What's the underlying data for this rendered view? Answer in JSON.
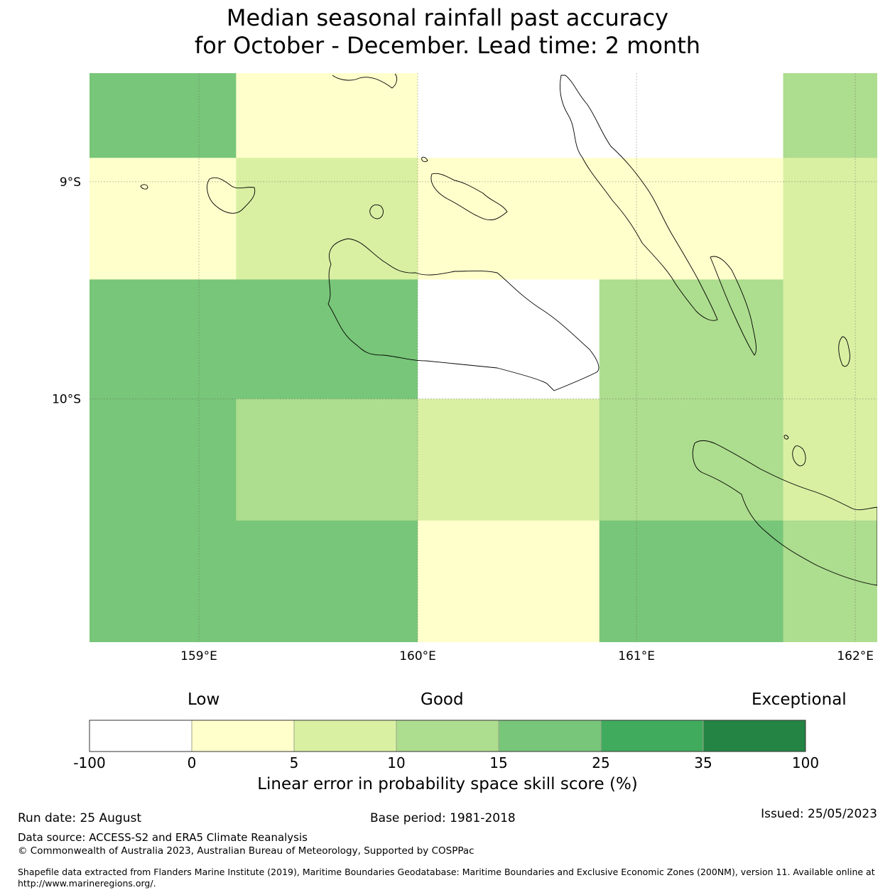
{
  "title": {
    "line1": "Median seasonal rainfall past accuracy",
    "line2": "for October - December. Lead time: 2 month"
  },
  "map": {
    "lat_labels": [
      "9°S",
      "10°S"
    ],
    "lon_labels": [
      "159°E",
      "160°E",
      "161°E",
      "162°E"
    ],
    "lat_range": [
      -11.12,
      -8.5
    ],
    "lon_range": [
      158.5,
      162.1
    ],
    "grid": true,
    "land_outline_color": "#000000",
    "cells": [
      {
        "lat_top": -8.5,
        "lat_bottom": -8.89,
        "lon_left": 158.5,
        "lon_right": 159.17,
        "score_band": "15-25"
      },
      {
        "lat_top": -8.5,
        "lat_bottom": -8.89,
        "lon_left": 159.17,
        "lon_right": 160.0,
        "score_band": "0-5"
      },
      {
        "lat_top": -8.5,
        "lat_bottom": -8.89,
        "lon_left": 160.0,
        "lon_right": 161.67,
        "score_band": "-100-0"
      },
      {
        "lat_top": -8.5,
        "lat_bottom": -8.89,
        "lon_left": 161.67,
        "lon_right": 162.1,
        "score_band": "10-15"
      },
      {
        "lat_top": -8.89,
        "lat_bottom": -9.45,
        "lon_left": 158.5,
        "lon_right": 159.17,
        "score_band": "0-5"
      },
      {
        "lat_top": -8.89,
        "lat_bottom": -9.45,
        "lon_left": 159.17,
        "lon_right": 160.0,
        "score_band": "5-10"
      },
      {
        "lat_top": -8.89,
        "lat_bottom": -9.45,
        "lon_left": 160.0,
        "lon_right": 161.67,
        "score_band": "0-5"
      },
      {
        "lat_top": -8.89,
        "lat_bottom": -9.45,
        "lon_left": 161.67,
        "lon_right": 162.1,
        "score_band": "5-10"
      },
      {
        "lat_top": -9.45,
        "lat_bottom": -10.0,
        "lon_left": 158.5,
        "lon_right": 160.0,
        "score_band": "15-25"
      },
      {
        "lat_top": -9.45,
        "lat_bottom": -10.0,
        "lon_left": 160.0,
        "lon_right": 160.83,
        "score_band": "-100-0"
      },
      {
        "lat_top": -9.45,
        "lat_bottom": -10.0,
        "lon_left": 160.83,
        "lon_right": 161.67,
        "score_band": "10-15"
      },
      {
        "lat_top": -9.45,
        "lat_bottom": -10.0,
        "lon_left": 161.67,
        "lon_right": 162.1,
        "score_band": "5-10"
      },
      {
        "lat_top": -10.0,
        "lat_bottom": -10.56,
        "lon_left": 158.5,
        "lon_right": 159.17,
        "score_band": "15-25"
      },
      {
        "lat_top": -10.0,
        "lat_bottom": -10.56,
        "lon_left": 159.17,
        "lon_right": 160.0,
        "score_band": "10-15"
      },
      {
        "lat_top": -10.0,
        "lat_bottom": -10.56,
        "lon_left": 160.0,
        "lon_right": 160.83,
        "score_band": "5-10"
      },
      {
        "lat_top": -10.0,
        "lat_bottom": -10.56,
        "lon_left": 160.83,
        "lon_right": 161.67,
        "score_band": "10-15"
      },
      {
        "lat_top": -10.0,
        "lat_bottom": -10.56,
        "lon_left": 161.67,
        "lon_right": 162.1,
        "score_band": "5-10"
      },
      {
        "lat_top": -10.56,
        "lat_bottom": -11.12,
        "lon_left": 158.5,
        "lon_right": 160.0,
        "score_band": "15-25"
      },
      {
        "lat_top": -10.56,
        "lat_bottom": -11.12,
        "lon_left": 160.0,
        "lon_right": 160.83,
        "score_band": "0-5"
      },
      {
        "lat_top": -10.56,
        "lat_bottom": -11.12,
        "lon_left": 160.83,
        "lon_right": 161.67,
        "score_band": "15-25"
      },
      {
        "lat_top": -10.56,
        "lat_bottom": -11.12,
        "lon_left": 161.67,
        "lon_right": 162.1,
        "score_band": "10-15"
      }
    ]
  },
  "colorbar": {
    "categories": [
      "Low",
      "Good",
      "Exceptional"
    ],
    "ticks": [
      "-100",
      "0",
      "5",
      "10",
      "15",
      "25",
      "35",
      "100"
    ],
    "bands": [
      {
        "range": "-100-0",
        "color": "#ffffff"
      },
      {
        "range": "0-5",
        "color": "#ffffcc"
      },
      {
        "range": "5-10",
        "color": "#d9f0a3"
      },
      {
        "range": "10-15",
        "color": "#addd8e"
      },
      {
        "range": "15-25",
        "color": "#78c679"
      },
      {
        "range": "25-35",
        "color": "#41ab5d"
      },
      {
        "range": "35-100",
        "color": "#238443"
      }
    ],
    "label": "Linear error in probability space skill score (%)"
  },
  "footer": {
    "run_date": "Run date: 25 August",
    "base_period": "Base period: 1981-2018",
    "issued": "Issued: 25/05/2023",
    "data_source": "Data source: ACCESS-S2 and ERA5 Climate Reanalysis",
    "copyright": "© Commonwealth of Australia 2023, Australian Bureau of Meteorology, Supported by COSPPac",
    "shapefile_line1": "Shapefile data extracted from Flanders Marine Institute (2019), Maritime Boundaries Geodatabase: Maritime Boundaries and Exclusive Economic Zones (200NM), version 11. Available online at",
    "shapefile_line2": "http://www.marineregions.org/."
  }
}
